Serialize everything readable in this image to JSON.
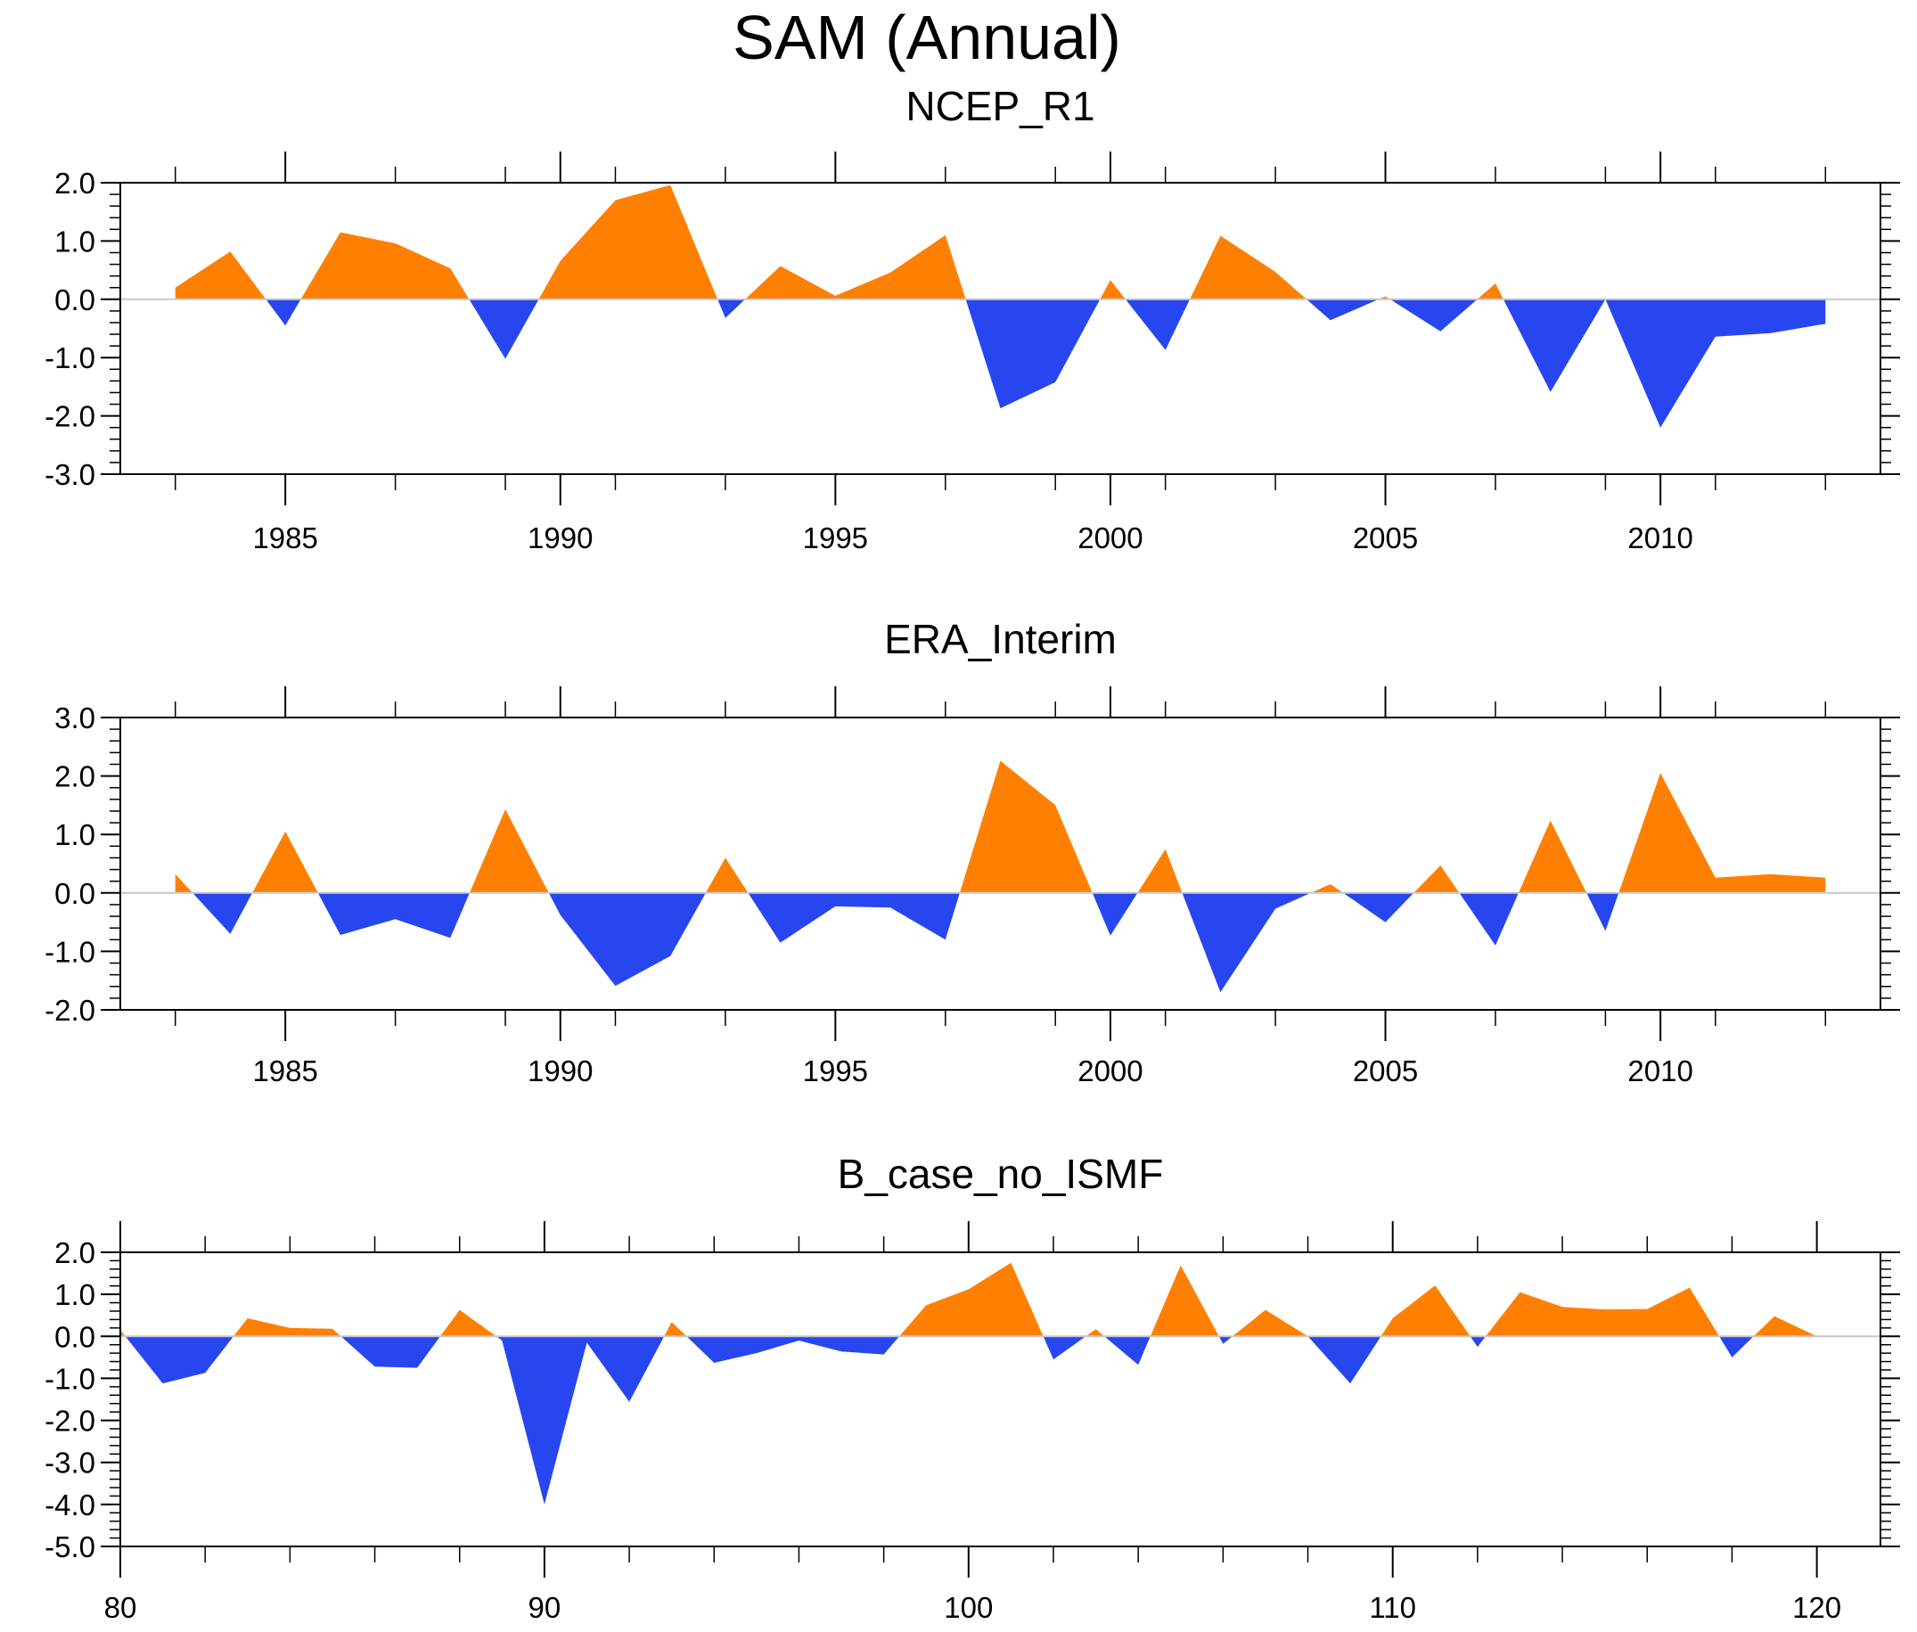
{
  "title": "SAM (Annual)",
  "colors": {
    "positive": "#ff8000",
    "negative": "#2846f0",
    "zero_line": "#c8c8c8",
    "axis": "#000000"
  },
  "chart_data": [
    {
      "type": "area",
      "title": "NCEP_R1",
      "xlabel": "",
      "ylabel": "",
      "xlim": [
        1982,
        2014
      ],
      "ylim": [
        -3.0,
        2.0
      ],
      "xticks": [
        1985,
        1990,
        1995,
        2000,
        2005,
        2010
      ],
      "yticks": [
        -3.0,
        -2.0,
        -1.0,
        0.0,
        1.0,
        2.0
      ],
      "grid": false,
      "x": [
        1983,
        1984,
        1985,
        1986,
        1987,
        1988,
        1989,
        1990,
        1991,
        1992,
        1993,
        1994,
        1995,
        1996,
        1997,
        1998,
        1999,
        2000,
        2001,
        2002,
        2003,
        2004,
        2005,
        2006,
        2007,
        2008,
        2009,
        2010,
        2011,
        2012,
        2013
      ],
      "y": [
        0.2,
        0.82,
        -0.45,
        1.15,
        0.96,
        0.53,
        -1.02,
        0.66,
        1.7,
        1.96,
        -0.32,
        0.57,
        0.06,
        0.46,
        1.1,
        -1.87,
        -1.42,
        0.33,
        -0.87,
        1.09,
        0.47,
        -0.36,
        0.05,
        -0.55,
        0.27,
        -1.59,
        0.0,
        -2.2,
        -0.64,
        -0.58,
        -0.42
      ]
    },
    {
      "type": "area",
      "title": "ERA_Interim",
      "xlabel": "",
      "ylabel": "",
      "xlim": [
        1982,
        2014
      ],
      "ylim": [
        -2.0,
        3.0
      ],
      "xticks": [
        1985,
        1990,
        1995,
        2000,
        2005,
        2010
      ],
      "yticks": [
        -2.0,
        -1.0,
        0.0,
        1.0,
        2.0,
        3.0
      ],
      "grid": false,
      "x": [
        1983,
        1984,
        1985,
        1986,
        1987,
        1988,
        1989,
        1990,
        1991,
        1992,
        1993,
        1994,
        1995,
        1996,
        1997,
        1998,
        1999,
        2000,
        2001,
        2002,
        2003,
        2004,
        2005,
        2006,
        2007,
        2008,
        2009,
        2010,
        2011,
        2012,
        2013
      ],
      "y": [
        0.32,
        -0.7,
        1.05,
        -0.72,
        -0.45,
        -0.77,
        1.43,
        -0.38,
        -1.59,
        -1.08,
        0.6,
        -0.85,
        -0.23,
        -0.25,
        -0.8,
        2.26,
        1.5,
        -0.73,
        0.75,
        -1.7,
        -0.27,
        0.15,
        -0.5,
        0.47,
        -0.9,
        1.24,
        -0.65,
        2.05,
        0.26,
        0.32,
        0.26
      ]
    },
    {
      "type": "area",
      "title": "B_case_no_ISMF",
      "xlabel": "",
      "ylabel": "",
      "xlim": [
        80,
        121.5
      ],
      "ylim": [
        -5.0,
        2.0
      ],
      "xticks": [
        80,
        90,
        100,
        110,
        120
      ],
      "yticks": [
        -5.0,
        -4.0,
        -3.0,
        -2.0,
        -1.0,
        0.0,
        1.0,
        2.0
      ],
      "grid": false,
      "x": [
        80,
        81,
        82,
        83,
        84,
        85,
        86,
        87,
        88,
        89,
        90,
        91,
        92,
        93,
        94,
        95,
        96,
        97,
        98,
        99,
        100,
        101,
        102,
        103,
        104,
        105,
        106,
        107,
        108,
        109,
        110,
        111,
        112,
        113,
        114,
        115,
        116,
        117,
        118,
        119,
        120
      ],
      "y": [
        0.15,
        -1.12,
        -0.87,
        0.43,
        0.2,
        0.18,
        -0.72,
        -0.75,
        0.63,
        -0.1,
        -4.0,
        -0.15,
        -1.56,
        0.34,
        -0.63,
        -0.4,
        -0.1,
        -0.36,
        -0.43,
        0.74,
        1.12,
        1.75,
        -0.55,
        0.17,
        -0.68,
        1.69,
        -0.18,
        0.63,
        0.0,
        -1.12,
        0.43,
        1.21,
        -0.25,
        1.05,
        0.7,
        0.64,
        0.65,
        1.16,
        -0.5,
        0.48,
        0.0
      ]
    }
  ]
}
